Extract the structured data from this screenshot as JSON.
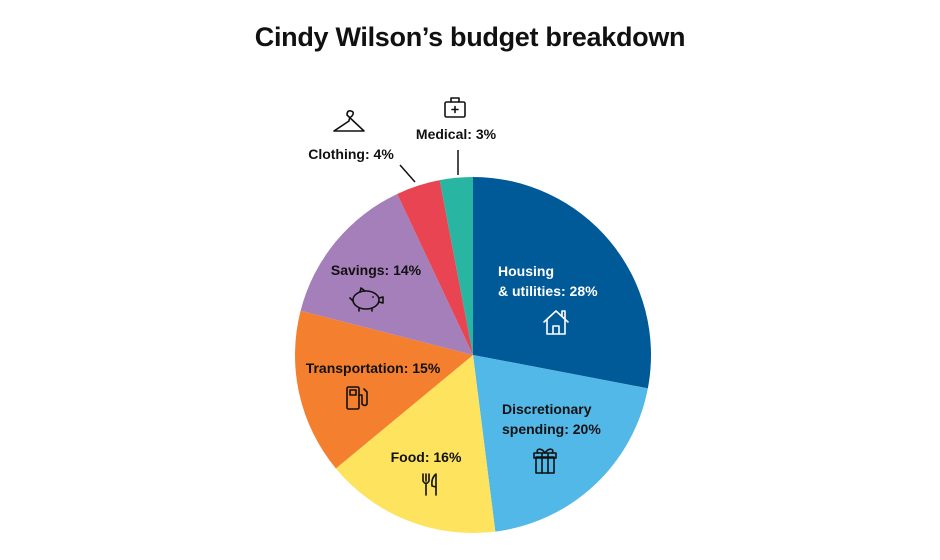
{
  "chart_data": {
    "type": "pie",
    "title": "Cindy Wilson’s budget breakdown",
    "slices": [
      {
        "label": "Housing & utilities",
        "label_lines": [
          "Housing",
          "& utilities: 28%"
        ],
        "value": 28,
        "color": "#015a98",
        "text_color": "#ffffff",
        "icon": "house-icon"
      },
      {
        "label": "Discretionary spending",
        "label_lines": [
          "Discretionary",
          "spending: 20%"
        ],
        "value": 20,
        "color": "#51b8e8",
        "text_color": "#111111",
        "icon": "gift-icon"
      },
      {
        "label": "Food",
        "label_lines": [
          "Food: 16%"
        ],
        "value": 16,
        "color": "#fde35e",
        "text_color": "#111111",
        "icon": "fork-knife-icon"
      },
      {
        "label": "Transportation",
        "label_lines": [
          "Transportation: 15%"
        ],
        "value": 15,
        "color": "#f47f2f",
        "text_color": "#111111",
        "icon": "fuel-pump-icon"
      },
      {
        "label": "Savings",
        "label_lines": [
          "Savings: 14%"
        ],
        "value": 14,
        "color": "#a47fba",
        "text_color": "#111111",
        "icon": "piggy-bank-icon"
      },
      {
        "label": "Clothing",
        "label_lines": [
          "Clothing: 4%"
        ],
        "value": 4,
        "color": "#e84452",
        "text_color": "#111111",
        "icon": "hanger-icon"
      },
      {
        "label": "Medical",
        "label_lines": [
          "Medical: 3%"
        ],
        "value": 3,
        "color": "#28b5a1",
        "text_color": "#111111",
        "icon": "medical-kit-icon"
      }
    ]
  }
}
